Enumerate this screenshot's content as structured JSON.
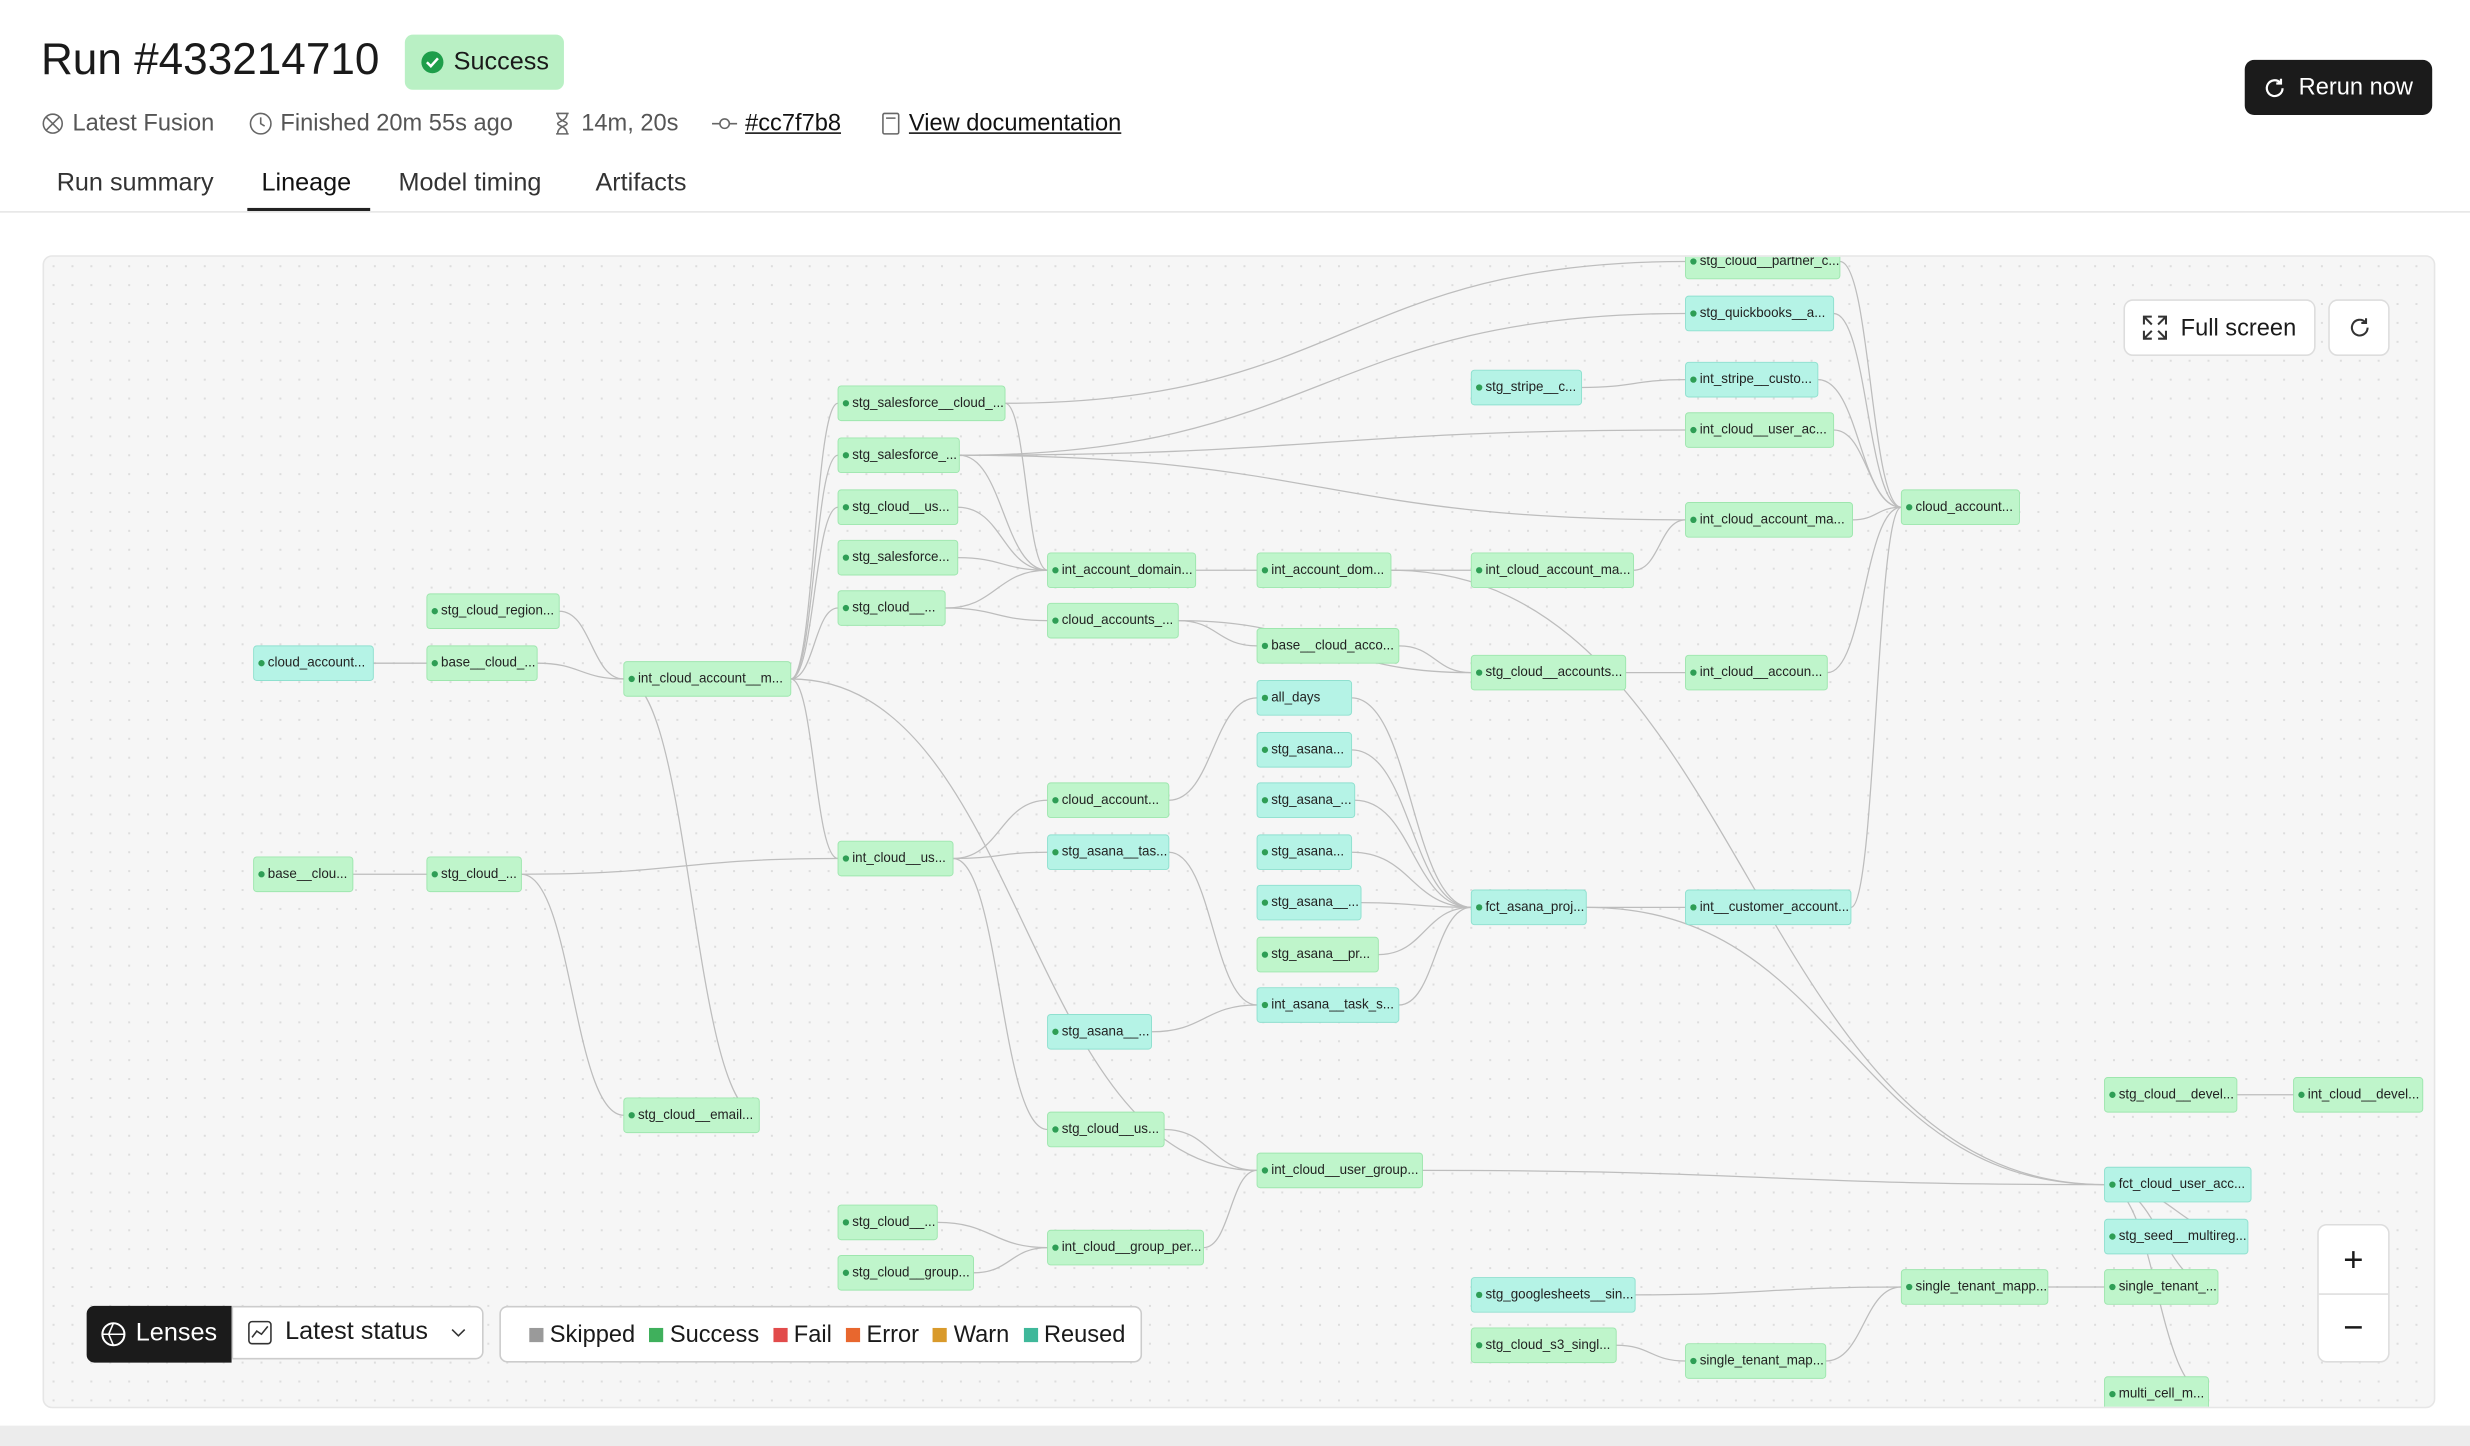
{
  "header": {
    "title": "Run #433214710",
    "status": "Success",
    "environment": "Latest Fusion",
    "finished": "Finished 20m 55s ago",
    "duration": "14m, 20s",
    "commit": "#cc7f7b8",
    "docs": "View documentation",
    "rerun": "Rerun now"
  },
  "tabs": [
    "Run summary",
    "Lineage",
    "Model timing",
    "Artifacts"
  ],
  "toolbar": {
    "full_screen": "Full screen",
    "zoom_in": "+",
    "zoom_out": "−"
  },
  "lenses": {
    "label": "Lenses",
    "select": "Latest status",
    "legend": [
      "Skipped",
      "Success",
      "Fail",
      "Error",
      "Warn",
      "Reused"
    ]
  },
  "lineage": {
    "nodes": [
      "stg_cloud__partner_c...",
      "stg_quickbooks__a...",
      "stg_stripe__c...",
      "int_stripe__custo...",
      "int_cloud__user_ac...",
      "stg_salesforce__cloud_...",
      "stg_salesforce_...",
      "stg_cloud__us...",
      "stg_salesforce...",
      "stg_cloud__...",
      "int_account_domain...",
      "int_account_dom...",
      "int_cloud_account_ma...",
      "int_cloud_account_ma...",
      "cloud_account...",
      "cloud_accounts_...",
      "stg_cloud_region...",
      "cloud_account...",
      "base__cloud_...",
      "int_cloud_account__m...",
      "base__cloud_acco...",
      "stg_cloud__accounts...",
      "int_cloud__accoun...",
      "all_days",
      "stg_asana...",
      "stg_asana_...",
      "stg_asana...",
      "stg_asana__...",
      "stg_asana__pr...",
      "int_asana__task_s...",
      "cloud_account...",
      "stg_asana__tas...",
      "int_cloud__us...",
      "base__clou...",
      "stg_cloud_...",
      "fct_asana_proj...",
      "int__customer_account...",
      "stg_asana__...",
      "stg_cloud__email...",
      "stg_cloud__us...",
      "int_cloud__user_group...",
      "stg_cloud__devel...",
      "int_cloud__devel...",
      "fct_cloud_user_acc...",
      "stg_seed__multireg...",
      "stg_cloud__...",
      "stg_cloud__group...",
      "int_cloud__group_per...",
      "stg_googlesheets__sin...",
      "stg_cloud_s3_singl...",
      "single_tenant_mapp...",
      "single_tenant_...",
      "single_tenant_map...",
      "multi_cell_m..."
    ]
  }
}
